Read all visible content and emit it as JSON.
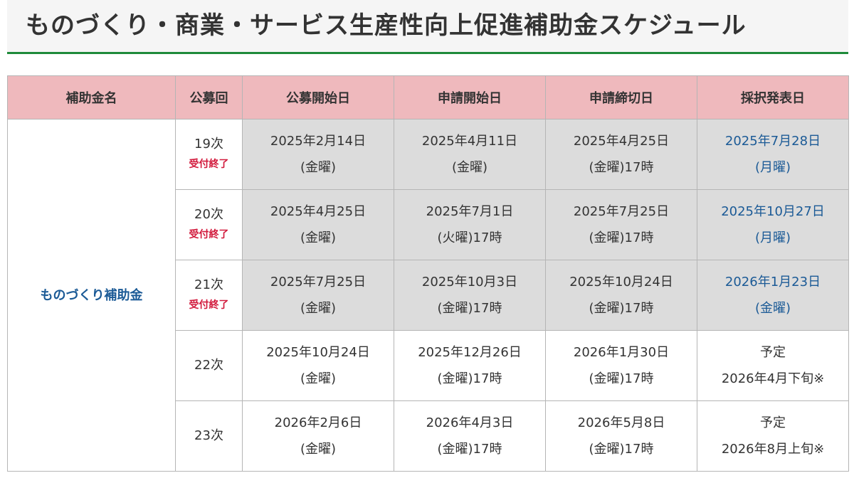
{
  "title": "ものづくり・商業・サービス生産性向上促進補助金スケジュール",
  "table": {
    "headers": [
      "補助金名",
      "公募回",
      "公募開始日",
      "申請開始日",
      "申請締切日",
      "採択発表日"
    ],
    "subsidy_name": "ものづくり補助金",
    "rows": [
      {
        "round": "19次",
        "status": "受付終了",
        "open": [
          "2025年2月14日",
          "(金曜)"
        ],
        "apply_start": [
          "2025年4月11日",
          "(金曜)"
        ],
        "deadline": [
          "2025年4月25日",
          "(金曜)17時"
        ],
        "announce": [
          "2025年7月28日",
          "(月曜)"
        ]
      },
      {
        "round": "20次",
        "status": "受付終了",
        "open": [
          "2025年4月25日",
          "(金曜)"
        ],
        "apply_start": [
          "2025年7月1日",
          "(火曜)17時"
        ],
        "deadline": [
          "2025年7月25日",
          "(金曜)17時"
        ],
        "announce": [
          "2025年10月27日",
          "(月曜)"
        ]
      },
      {
        "round": "21次",
        "status": "受付終了",
        "open": [
          "2025年7月25日",
          "(金曜)"
        ],
        "apply_start": [
          "2025年10月3日",
          "(金曜)17時"
        ],
        "deadline": [
          "2025年10月24日",
          "(金曜)17時"
        ],
        "announce": [
          "2026年1月23日",
          "(金曜)"
        ]
      },
      {
        "round": "22次",
        "open": [
          "2025年10月24日",
          "(金曜)"
        ],
        "apply_start": [
          "2025年12月26日",
          "(金曜)17時"
        ],
        "deadline": [
          "2026年1月30日",
          "(金曜)17時"
        ],
        "announce": [
          "予定",
          "2026年4月下旬※"
        ]
      },
      {
        "round": "23次",
        "open": [
          "2026年2月6日",
          "(金曜)"
        ],
        "apply_start": [
          "2026年4月3日",
          "(金曜)17時"
        ],
        "deadline": [
          "2026年5月8日",
          "(金曜)17時"
        ],
        "announce": [
          "予定",
          "2026年8月上旬※"
        ]
      }
    ]
  },
  "colors": {
    "header_bg": "#efb9bd",
    "closed_row_bg": "#dcdcdc",
    "closed_text": "#d21a3c",
    "link_blue": "#1b5a96",
    "title_underline": "#1e8a3a"
  }
}
